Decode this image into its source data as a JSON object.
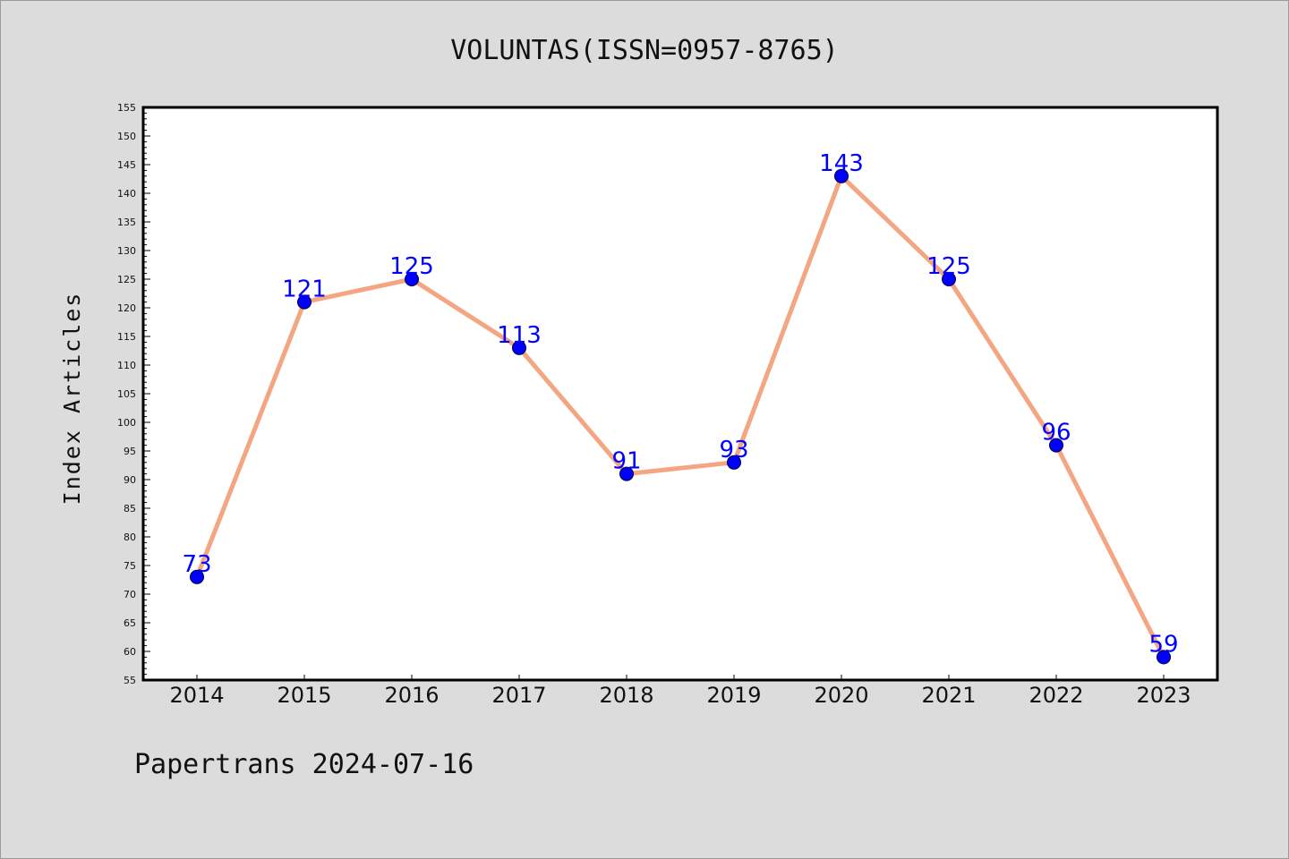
{
  "chart_data": {
    "type": "line",
    "title": "VOLUNTAS(ISSN=0957-8765)",
    "ylabel": "Index Articles",
    "xlabel": "",
    "categories": [
      "2014",
      "2015",
      "2016",
      "2017",
      "2018",
      "2019",
      "2020",
      "2021",
      "2022",
      "2023"
    ],
    "values": [
      73,
      121,
      125,
      113,
      91,
      93,
      143,
      125,
      96,
      59
    ],
    "ylim": [
      55,
      155
    ],
    "ytick_step": 5,
    "grid": false,
    "line_color": "#f4a582",
    "marker_color": "#0000ff",
    "label_color": "#0000ff"
  },
  "footer": "Papertrans 2024-07-16"
}
